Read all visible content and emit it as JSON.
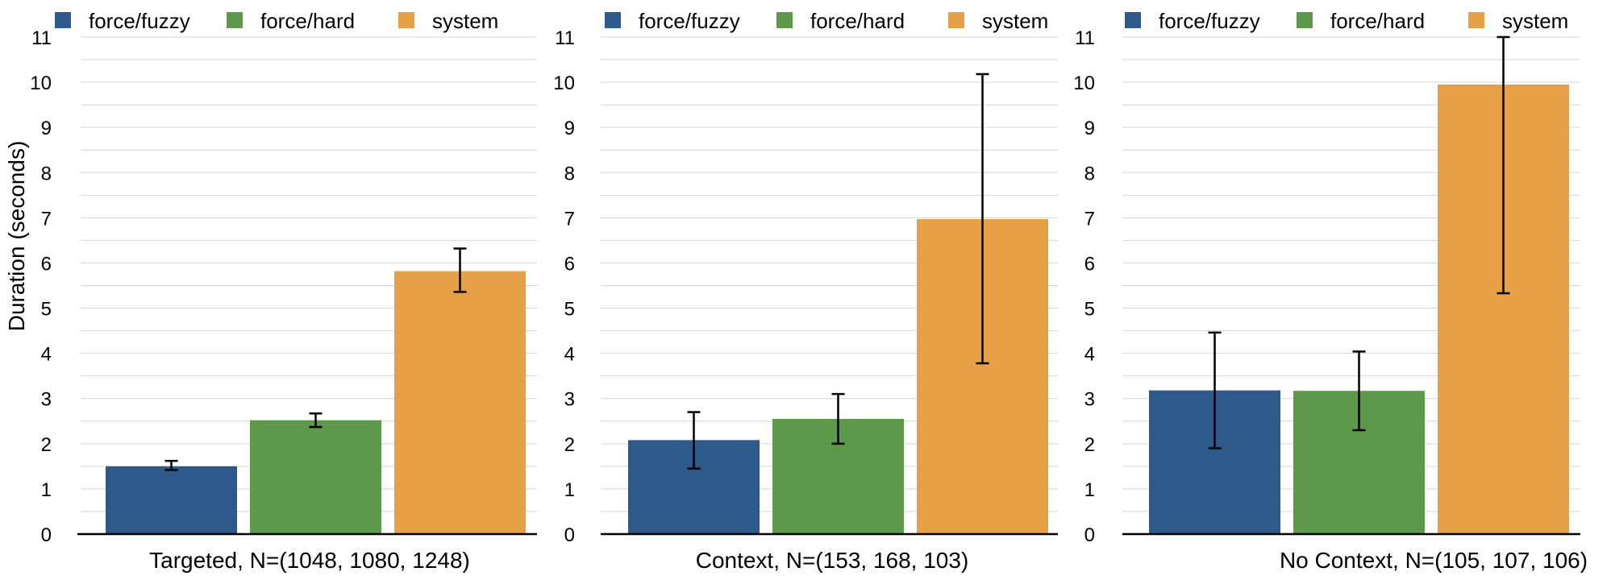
{
  "ylabel": "Duration (seconds)",
  "legend_labels": [
    "force/fuzzy",
    "force/hard",
    "system"
  ],
  "colors": {
    "force_fuzzy": "#2e5a8b",
    "force_hard": "#5d984b",
    "system": "#e6a148",
    "error_bar": "#000000",
    "grid": "#d4d4d4",
    "axis": "#000000"
  },
  "chart_data": [
    {
      "type": "bar",
      "xlabel": "Targeted, N=(1048, 1080, 1248)",
      "ylabel": "Duration (seconds)",
      "ylim": [
        0,
        11
      ],
      "yticks": [
        0,
        1,
        2,
        3,
        4,
        5,
        6,
        7,
        8,
        9,
        10,
        11
      ],
      "grid": true,
      "legend": "top",
      "series": [
        {
          "name": "force/fuzzy",
          "value": 1.5,
          "err_low": 1.42,
          "err_high": 1.62
        },
        {
          "name": "force/hard",
          "value": 2.52,
          "err_low": 2.37,
          "err_high": 2.67
        },
        {
          "name": "system",
          "value": 5.82,
          "err_low": 5.36,
          "err_high": 6.32
        }
      ]
    },
    {
      "type": "bar",
      "xlabel": "Context, N=(153, 168, 103)",
      "ylabel": "",
      "ylim": [
        0,
        11
      ],
      "yticks": [
        0,
        1,
        2,
        3,
        4,
        5,
        6,
        7,
        8,
        9,
        10,
        11
      ],
      "grid": true,
      "legend": "top",
      "series": [
        {
          "name": "force/fuzzy",
          "value": 2.08,
          "err_low": 1.45,
          "err_high": 2.7
        },
        {
          "name": "force/hard",
          "value": 2.55,
          "err_low": 2.0,
          "err_high": 3.1
        },
        {
          "name": "system",
          "value": 6.97,
          "err_low": 3.78,
          "err_high": 10.18
        }
      ]
    },
    {
      "type": "bar",
      "xlabel": "No Context, N=(105, 107, 106)",
      "ylabel": "",
      "ylim": [
        0,
        11
      ],
      "yticks": [
        0,
        1,
        2,
        3,
        4,
        5,
        6,
        7,
        8,
        9,
        10,
        11
      ],
      "grid": true,
      "legend": "top",
      "series": [
        {
          "name": "force/fuzzy",
          "value": 3.18,
          "err_low": 1.9,
          "err_high": 4.46
        },
        {
          "name": "force/hard",
          "value": 3.17,
          "err_low": 2.3,
          "err_high": 4.04
        },
        {
          "name": "system",
          "value": 9.95,
          "err_low": 5.33,
          "err_high": 11.0
        }
      ]
    }
  ]
}
